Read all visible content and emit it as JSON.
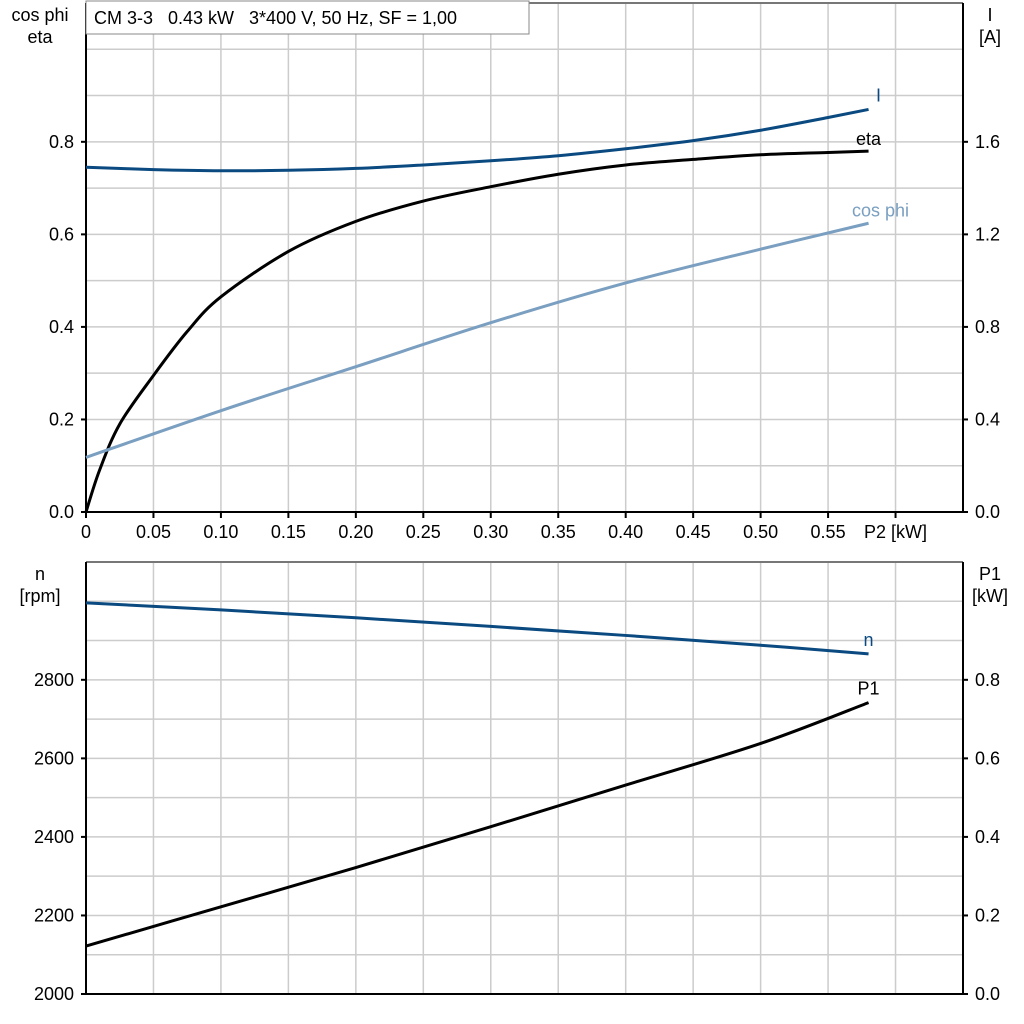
{
  "legend_box": "CM 3-3   0.43 kW   3*400 V, 50 Hz, SF = 1,00",
  "colors": {
    "I": "#0a4a80",
    "eta": "#000000",
    "cos_phi": "#7a9fc0",
    "n": "#0a4a80",
    "P1": "#000000",
    "grid": "#cccccc"
  },
  "chart_data": [
    {
      "type": "line",
      "xlabel": "P2 [kW]",
      "ylabel_left": [
        "cos phi",
        "eta"
      ],
      "ylabel_right": [
        "I",
        "[A]"
      ],
      "xlim": [
        0,
        0.65
      ],
      "ylim_left": [
        0,
        1.1
      ],
      "ylim_right": [
        0,
        2.2
      ],
      "x_ticks": [
        "0",
        "0.05",
        "0.10",
        "0.15",
        "0.20",
        "0.25",
        "0.30",
        "0.35",
        "0.40",
        "0.45",
        "0.50",
        "0.55"
      ],
      "y_ticks_left": [
        "0.0",
        "0.2",
        "0.4",
        "0.6",
        "0.8"
      ],
      "y_ticks_right": [
        "0.0",
        "0.4",
        "0.8",
        "1.2",
        "1.6"
      ],
      "grid": true,
      "series": [
        {
          "name": "I",
          "axis": "right",
          "x": [
            0,
            0.05,
            0.1,
            0.15,
            0.2,
            0.25,
            0.3,
            0.35,
            0.4,
            0.45,
            0.5,
            0.55,
            0.58
          ],
          "y": [
            1.49,
            1.48,
            1.475,
            1.477,
            1.485,
            1.5,
            1.518,
            1.54,
            1.57,
            1.605,
            1.65,
            1.705,
            1.74
          ]
        },
        {
          "name": "eta",
          "axis": "left",
          "x": [
            0,
            0.01,
            0.025,
            0.05,
            0.075,
            0.1,
            0.15,
            0.2,
            0.25,
            0.3,
            0.35,
            0.4,
            0.45,
            0.5,
            0.55,
            0.58
          ],
          "y": [
            0,
            0.09,
            0.19,
            0.295,
            0.39,
            0.465,
            0.563,
            0.628,
            0.672,
            0.703,
            0.73,
            0.75,
            0.762,
            0.772,
            0.777,
            0.78
          ]
        },
        {
          "name": "cos phi",
          "axis": "left",
          "x": [
            0,
            0.1,
            0.2,
            0.3,
            0.4,
            0.5,
            0.58
          ],
          "y": [
            0.118,
            0.219,
            0.314,
            0.409,
            0.495,
            0.568,
            0.624
          ]
        }
      ]
    },
    {
      "type": "line",
      "xlim": [
        0,
        0.65
      ],
      "ylabel_left": [
        "n",
        "[rpm]"
      ],
      "ylabel_right": [
        "P1",
        "[kW]"
      ],
      "ylim_left": [
        2000,
        3100
      ],
      "ylim_right": [
        0,
        1.1
      ],
      "y_ticks_left": [
        "2000",
        "2200",
        "2400",
        "2600",
        "2800"
      ],
      "y_ticks_right": [
        "0.0",
        "0.2",
        "0.4",
        "0.6",
        "0.8"
      ],
      "grid": true,
      "series": [
        {
          "name": "n",
          "axis": "left",
          "x": [
            0,
            0.1,
            0.2,
            0.3,
            0.4,
            0.5,
            0.58
          ],
          "y": [
            2996,
            2978,
            2958,
            2936,
            2913,
            2888,
            2866
          ]
        },
        {
          "name": "P1",
          "axis": "right",
          "x": [
            0,
            0.1,
            0.2,
            0.3,
            0.4,
            0.5,
            0.58
          ],
          "y": [
            0.122,
            0.222,
            0.322,
            0.426,
            0.532,
            0.638,
            0.742
          ]
        }
      ]
    }
  ]
}
